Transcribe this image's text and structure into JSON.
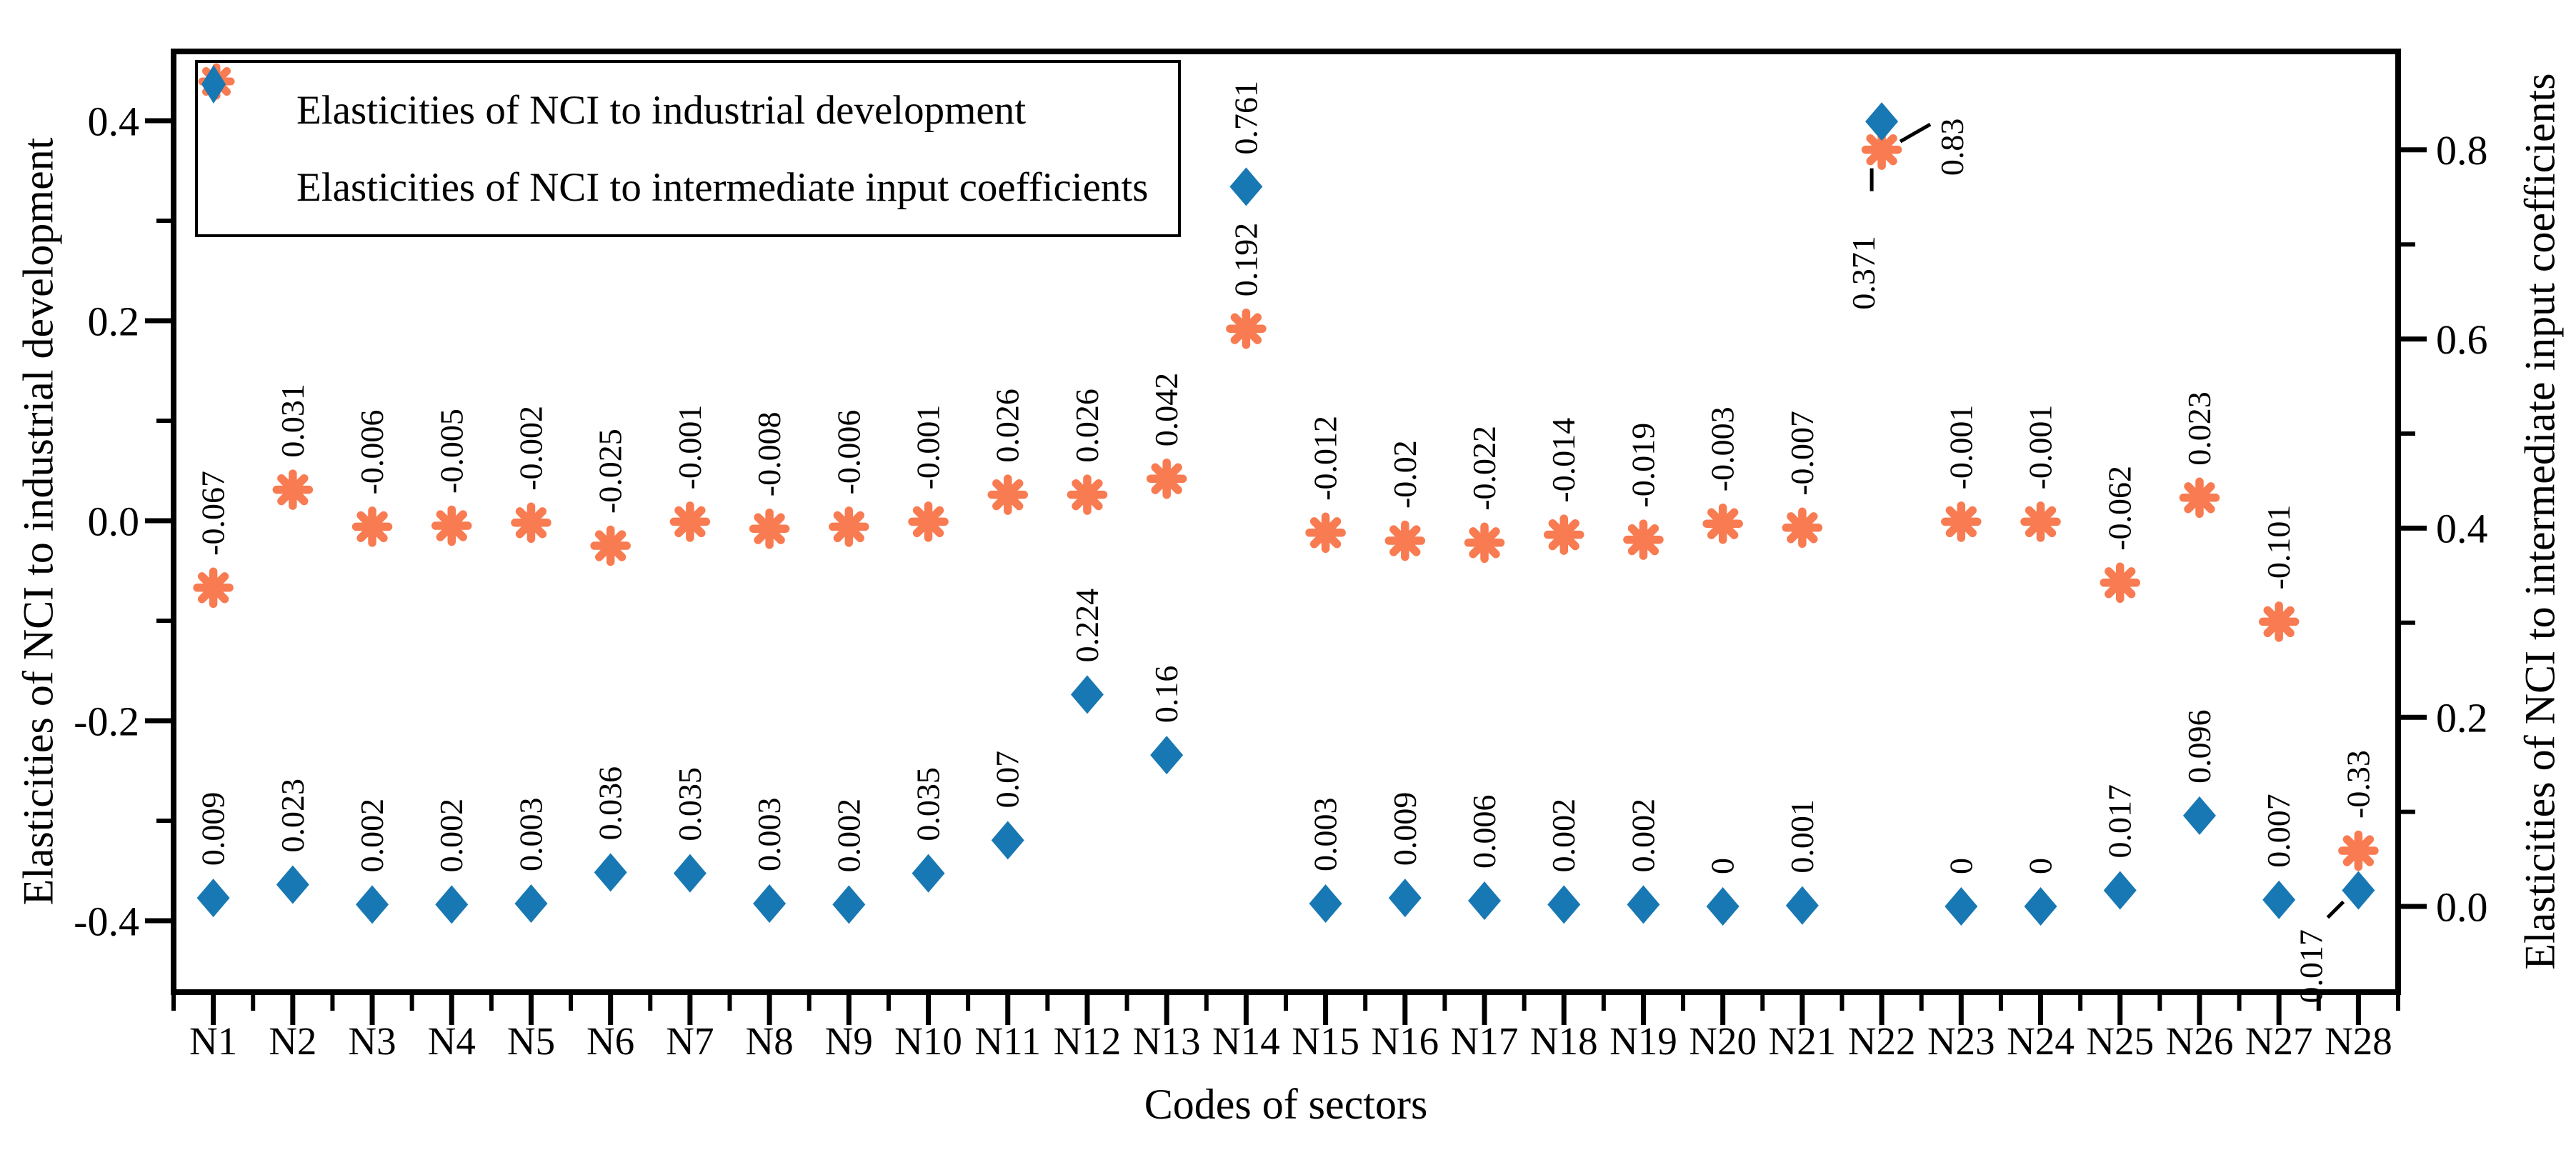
{
  "figure": {
    "background": "#ffffff",
    "frame_color": "#000000"
  },
  "chart_data": {
    "type": "scatter",
    "title": "",
    "xlabel": "Codes of sectors",
    "ylabel_left": "Elasticities of NCI to industrial development",
    "ylabel_right": "Elasticities of NCI to intermediate input coefficients",
    "grid": false,
    "legend_position": "top-left",
    "categories": [
      "N1",
      "N2",
      "N3",
      "N4",
      "N5",
      "N6",
      "N7",
      "N8",
      "N9",
      "N10",
      "N11",
      "N12",
      "N13",
      "N14",
      "N15",
      "N16",
      "N17",
      "N18",
      "N19",
      "N20",
      "N21",
      "N22",
      "N23",
      "N24",
      "N25",
      "N26",
      "N27",
      "N28"
    ],
    "series": [
      {
        "name": "Elasticities of NCI to industrial development",
        "axis": "left",
        "marker": "asterisk",
        "color": "#F87B51",
        "values": [
          -0.067,
          0.031,
          -0.006,
          -0.005,
          -0.002,
          -0.025,
          -0.001,
          -0.008,
          -0.006,
          -0.001,
          0.026,
          0.026,
          0.042,
          0.192,
          -0.012,
          -0.02,
          -0.022,
          -0.014,
          -0.019,
          -0.003,
          -0.007,
          0.371,
          -0.001,
          -0.001,
          -0.062,
          0.023,
          -0.101,
          -0.33
        ],
        "labels": [
          "-0.067",
          "0.031",
          "-0.006",
          "-0.005",
          "-0.002",
          "-0.025",
          "-0.001",
          "-0.008",
          "-0.006",
          "-0.001",
          "0.026",
          "0.026",
          "0.042",
          "0.192",
          "-0.012",
          "-0.02",
          "-0.022",
          "-0.014",
          "-0.019",
          "-0.003",
          "-0.007",
          "0.371",
          "-0.001",
          "-0.001",
          "-0.062",
          "0.023",
          "-0.101",
          "-0.33"
        ]
      },
      {
        "name": "Elasticities of NCI to intermediate input coefficients",
        "axis": "right",
        "marker": "diamond",
        "color": "#1778B4",
        "values": [
          0.009,
          0.023,
          0.002,
          0.002,
          0.003,
          0.036,
          0.035,
          0.003,
          0.002,
          0.035,
          0.07,
          0.224,
          0.16,
          0.761,
          0.003,
          0.009,
          0.006,
          0.002,
          0.002,
          0,
          0.001,
          0.83,
          0,
          0,
          0.017,
          0.096,
          0.007,
          0.017
        ],
        "labels": [
          "0.009",
          "0.023",
          "0.002",
          "0.002",
          "0.003",
          "0.036",
          "0.035",
          "0.003",
          "0.002",
          "0.035",
          "0.07",
          "0.224",
          "0.16",
          "0.761",
          "0.003",
          "0.009",
          "0.006",
          "0.002",
          "0.002",
          "0",
          "0.001",
          "0.83",
          "0",
          "0",
          "0.017",
          "0.096",
          "0.007",
          "0.017"
        ]
      }
    ],
    "left_axis": {
      "tick_labels": [
        "0.4",
        "0.2",
        "0.0",
        "-0.2",
        "-0.4"
      ],
      "tick_values": [
        0.4,
        0.2,
        0.0,
        -0.2,
        -0.4
      ],
      "minor_tick_values": [
        0.3,
        0.1,
        -0.1,
        -0.3
      ],
      "range": [
        -0.471,
        0.469
      ]
    },
    "right_axis": {
      "tick_labels": [
        "0.8",
        "0.6",
        "0.4",
        "0.2",
        "0.0"
      ],
      "tick_values": [
        0.8,
        0.6,
        0.4,
        0.2,
        0.0
      ],
      "minor_tick_values": [
        0.7,
        0.5,
        0.3,
        0.1
      ],
      "range": [
        -0.091,
        0.904
      ]
    },
    "leader_annotations": [
      {
        "series": 0,
        "index": 21,
        "placement": "below"
      },
      {
        "series": 1,
        "index": 21,
        "placement": "right"
      },
      {
        "series": 1,
        "index": 27,
        "placement": "below-left"
      }
    ]
  }
}
